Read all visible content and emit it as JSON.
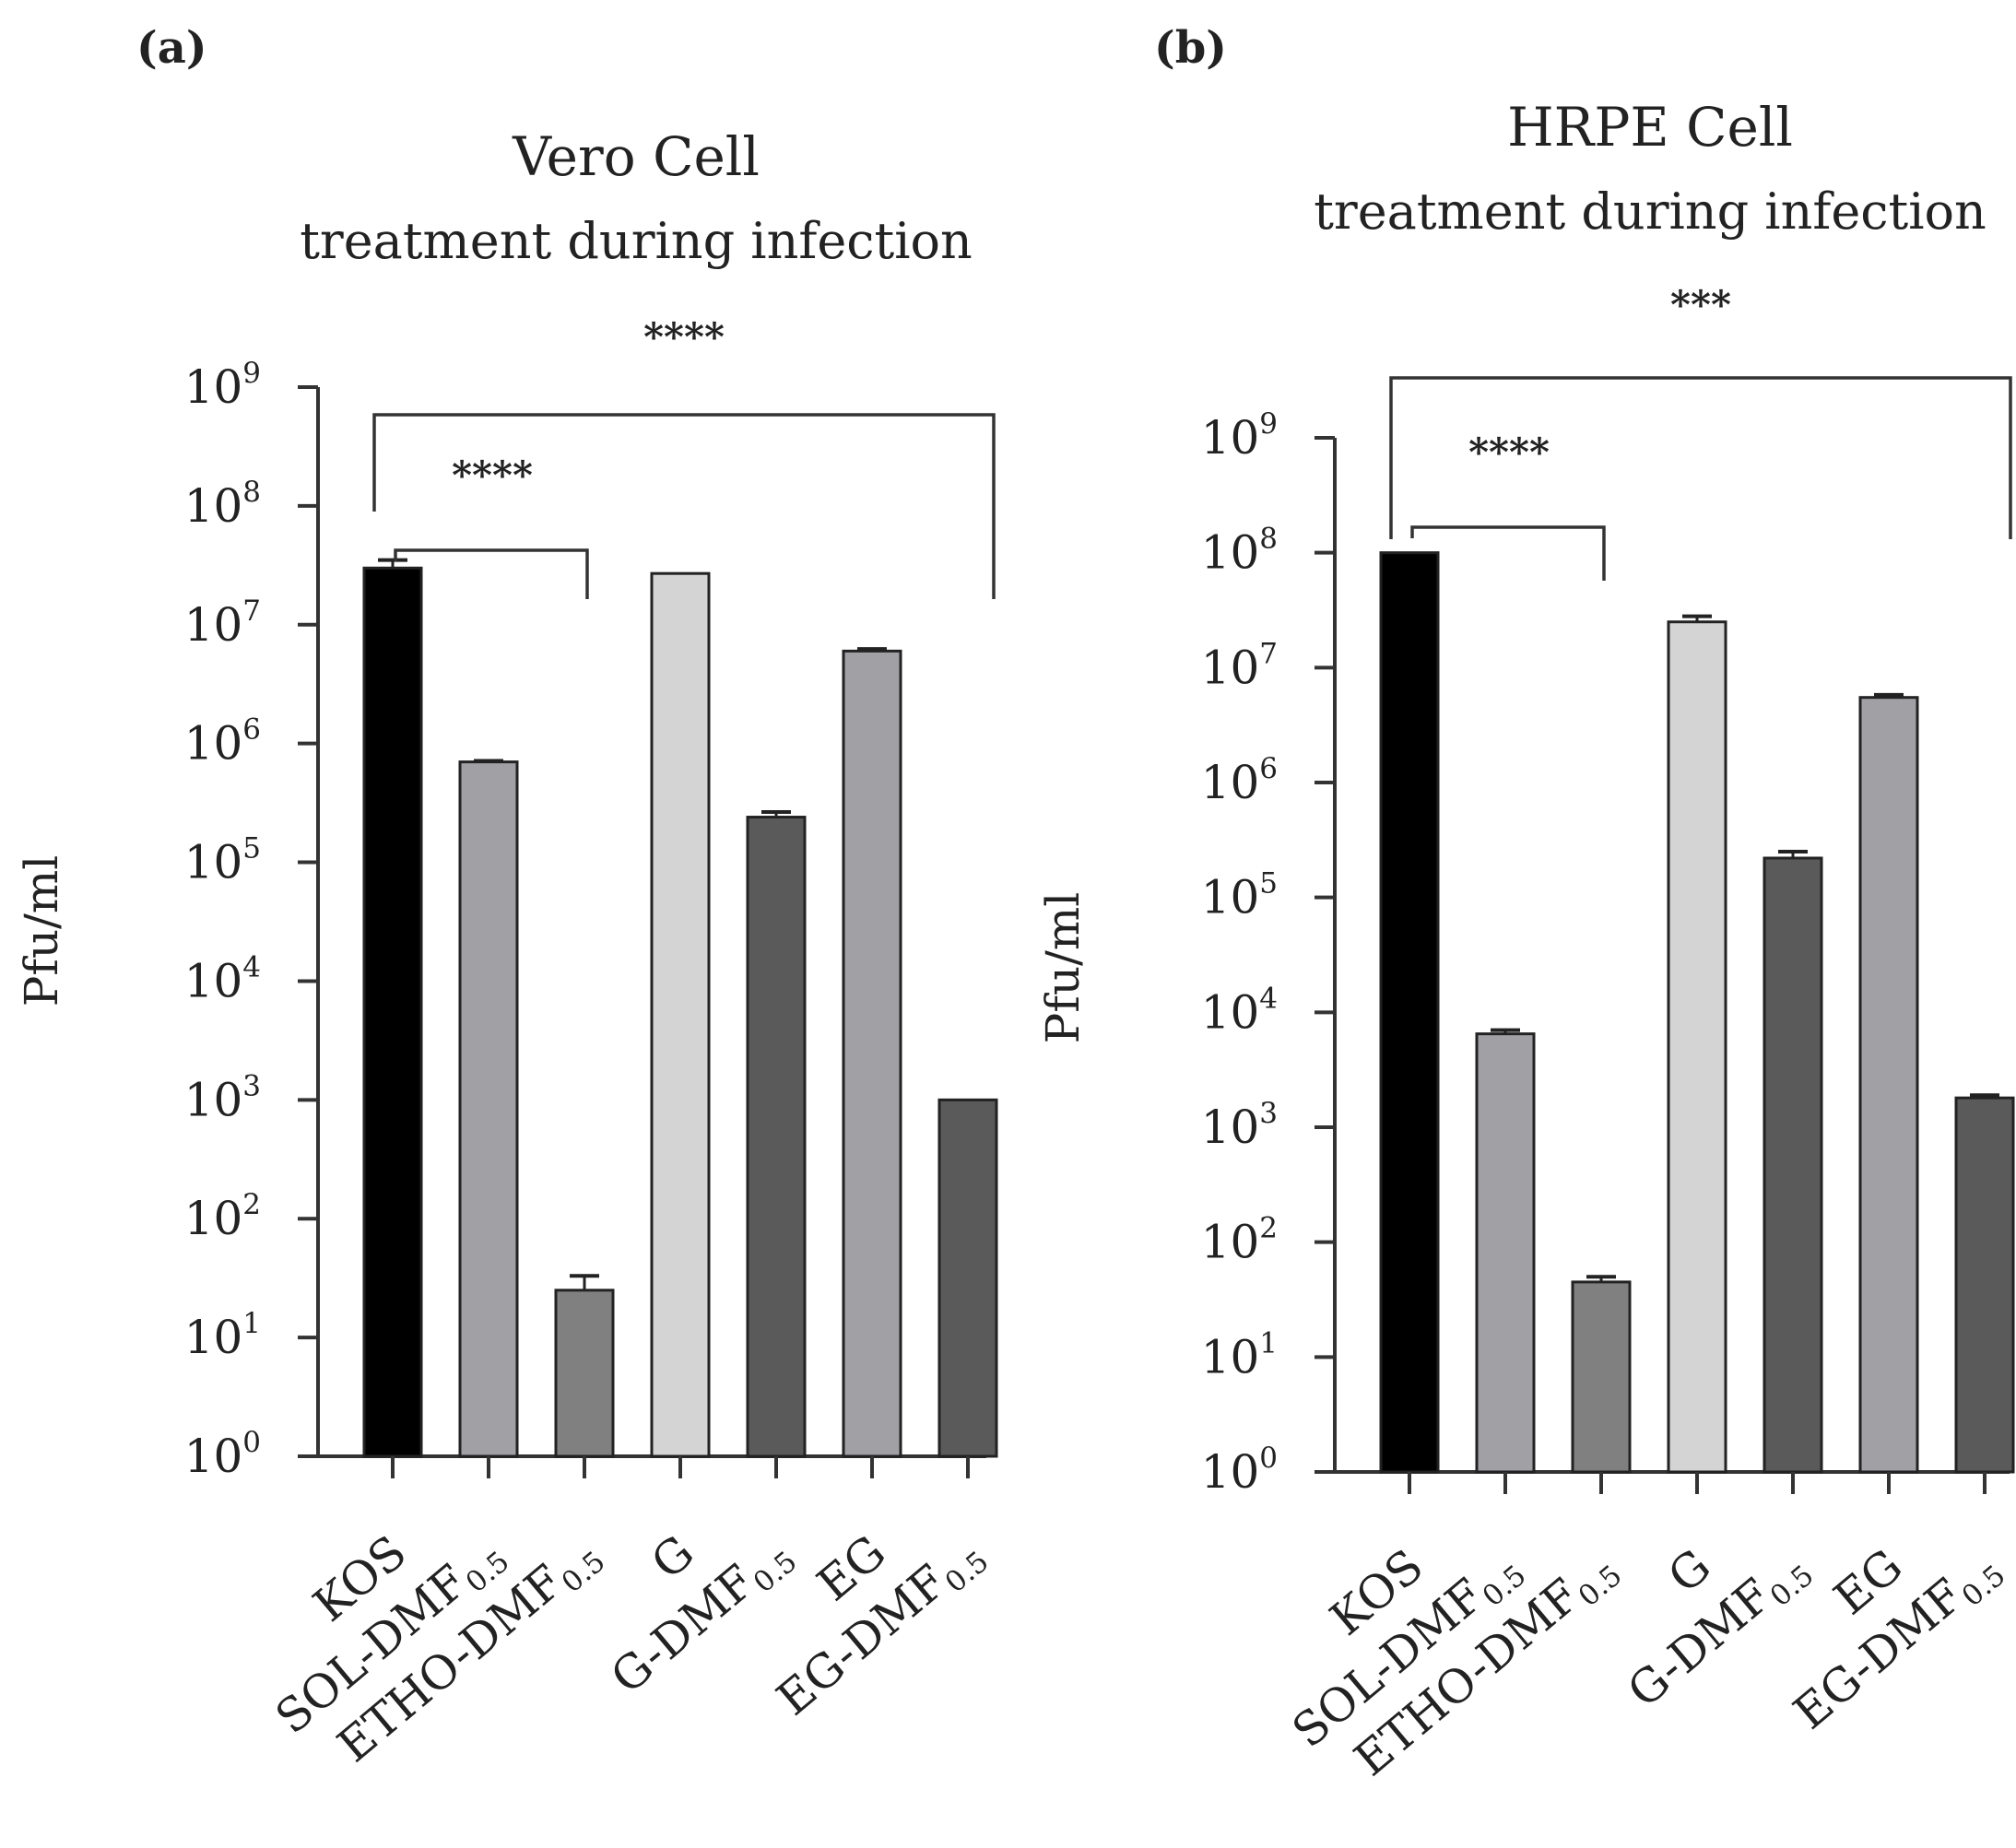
{
  "chart_data": [
    {
      "type": "bar",
      "panel_label": "(a)",
      "title": "Vero Cell",
      "subtitle": "treatment during infection",
      "ylabel": "Pfu/ml",
      "xlabel": "",
      "yscale": "log",
      "ylim": [
        1,
        1000000000
      ],
      "yticks": [
        {
          "base": "10",
          "exp": "0"
        },
        {
          "base": "10",
          "exp": "1"
        },
        {
          "base": "10",
          "exp": "2"
        },
        {
          "base": "10",
          "exp": "3"
        },
        {
          "base": "10",
          "exp": "4"
        },
        {
          "base": "10",
          "exp": "5"
        },
        {
          "base": "10",
          "exp": "6"
        },
        {
          "base": "10",
          "exp": "7"
        },
        {
          "base": "10",
          "exp": "8"
        },
        {
          "base": "10",
          "exp": "9"
        }
      ],
      "categories": [
        {
          "main": "KOS",
          "sub": ""
        },
        {
          "main": "SOL-DMF",
          "sub": "0.5"
        },
        {
          "main": "ETHO-DMF",
          "sub": "0.5"
        },
        {
          "main": "G",
          "sub": ""
        },
        {
          "main": "G-DMF",
          "sub": "0.5"
        },
        {
          "main": "EG",
          "sub": ""
        },
        {
          "main": "EG-DMF",
          "sub": "0.5"
        }
      ],
      "values": [
        30000000,
        700000,
        25,
        27000000,
        240000,
        6000000,
        1000
      ],
      "errors": [
        5000000,
        15000,
        8,
        0,
        25000,
        250000,
        0
      ],
      "colors": [
        "#000000",
        "#a0a0a5",
        "#808080",
        "#d4d4d4",
        "#5a5a5a",
        "#a0a0a5",
        "#5a5a5a"
      ],
      "significance": [
        {
          "label": "****",
          "from": 0,
          "to": 6,
          "level": "outer"
        },
        {
          "label": "****",
          "from": 0,
          "to": 2,
          "level": "inner"
        }
      ]
    },
    {
      "type": "bar",
      "panel_label": "(b)",
      "title": "HRPE Cell",
      "subtitle": "treatment during infection",
      "ylabel": "Pfu/ml",
      "xlabel": "",
      "yscale": "log",
      "ylim": [
        1,
        1000000000
      ],
      "yticks": [
        {
          "base": "10",
          "exp": "0"
        },
        {
          "base": "10",
          "exp": "1"
        },
        {
          "base": "10",
          "exp": "2"
        },
        {
          "base": "10",
          "exp": "3"
        },
        {
          "base": "10",
          "exp": "4"
        },
        {
          "base": "10",
          "exp": "5"
        },
        {
          "base": "10",
          "exp": "6"
        },
        {
          "base": "10",
          "exp": "7"
        },
        {
          "base": "10",
          "exp": "8"
        },
        {
          "base": "10",
          "exp": "9"
        }
      ],
      "categories": [
        {
          "main": "KOS",
          "sub": ""
        },
        {
          "main": "SOL-DMF",
          "sub": "0.5"
        },
        {
          "main": "ETHO-DMF",
          "sub": "0.5"
        },
        {
          "main": "G",
          "sub": ""
        },
        {
          "main": "G-DMF",
          "sub": "0.5"
        },
        {
          "main": "EG",
          "sub": ""
        },
        {
          "main": "EG-DMF",
          "sub": "0.5"
        }
      ],
      "values": [
        100000000,
        6500,
        45,
        25000000,
        220000,
        5500000,
        1800
      ],
      "errors": [
        0,
        500,
        5,
        3000000,
        30000,
        300000,
        100
      ],
      "colors": [
        "#000000",
        "#a0a0a5",
        "#808080",
        "#d4d4d4",
        "#5a5a5a",
        "#a0a0a5",
        "#5a5a5a"
      ],
      "significance": [
        {
          "label": "***",
          "from": 0,
          "to": 6,
          "level": "outer"
        },
        {
          "label": "****",
          "from": 0,
          "to": 2,
          "level": "inner"
        }
      ]
    }
  ]
}
